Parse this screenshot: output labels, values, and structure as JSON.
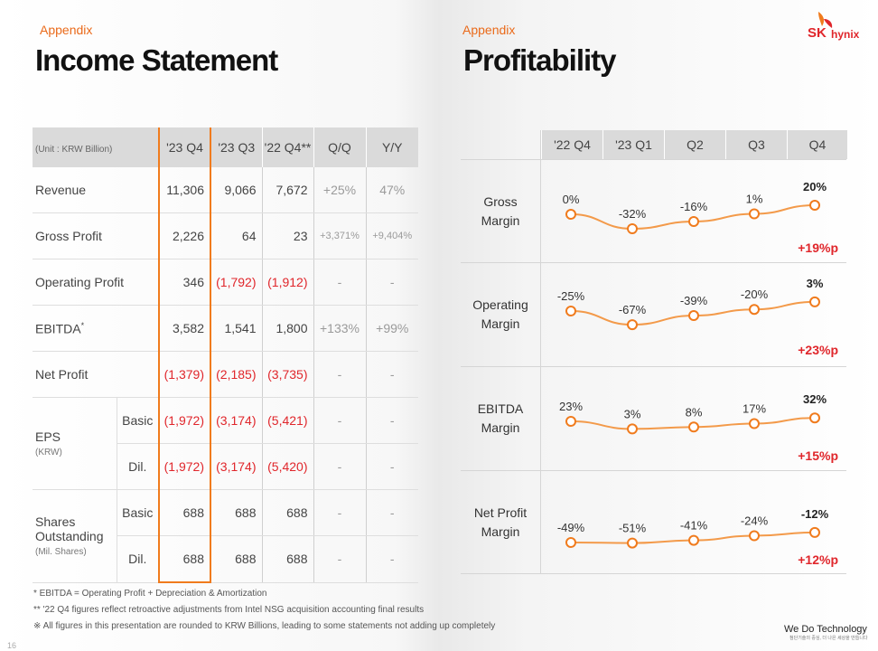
{
  "left": {
    "appendix": "Appendix",
    "title": "Income Statement",
    "unit": "(Unit : KRW Billion)",
    "headers": [
      "'23 Q4",
      "'23 Q3",
      "'22 Q4**",
      "Q/Q",
      "Y/Y"
    ],
    "rows": {
      "revenue": {
        "label": "Revenue",
        "v": [
          "11,306",
          "9,066",
          "7,672",
          "+25%",
          "47%"
        ]
      },
      "gross": {
        "label": "Gross Profit",
        "v": [
          "2,226",
          "64",
          "23",
          "+3,371%",
          "+9,404%"
        ]
      },
      "op": {
        "label": "Operating Profit",
        "v": [
          "346",
          "(1,792)",
          "(1,912)",
          "-",
          "-"
        ]
      },
      "ebitda": {
        "label": "EBITDA",
        "mark": "*",
        "v": [
          "3,582",
          "1,541",
          "1,800",
          "+133%",
          "+99%"
        ]
      },
      "net": {
        "label": "Net Profit",
        "v": [
          "(1,379)",
          "(2,185)",
          "(3,735)",
          "-",
          "-"
        ]
      },
      "eps": {
        "label": "EPS",
        "sub": "(KRW)",
        "basic": {
          "label": "Basic",
          "v": [
            "(1,972)",
            "(3,174)",
            "(5,421)",
            "-",
            "-"
          ]
        },
        "dil": {
          "label": "Dil.",
          "v": [
            "(1,972)",
            "(3,174)",
            "(5,420)",
            "-",
            "-"
          ]
        }
      },
      "shares": {
        "label1": "Shares",
        "label2": "Outstanding",
        "sub": "(Mil. Shares)",
        "basic": {
          "label": "Basic",
          "v": [
            "688",
            "688",
            "688",
            "-",
            "-"
          ]
        },
        "dil": {
          "label": "Dil.",
          "v": [
            "688",
            "688",
            "688",
            "-",
            "-"
          ]
        }
      }
    },
    "footnotes": [
      "* EBITDA = Operating Profit + Depreciation & Amortization",
      "** '22 Q4 figures reflect retroactive adjustments from Intel NSG acquisition accounting final results",
      "※ All figures in this presentation are rounded to KRW Billions, leading to some statements not adding up completely"
    ]
  },
  "right": {
    "appendix": "Appendix",
    "title": "Profitability",
    "headers": [
      "'22 Q4",
      "'23 Q1",
      "Q2",
      "Q3",
      "Q4"
    ],
    "rows": [
      {
        "label1": "Gross",
        "label2": "Margin",
        "values": [
          0,
          -32,
          -16,
          1,
          20
        ],
        "labels": [
          "0%",
          "-32%",
          "-16%",
          "1%",
          "20%"
        ],
        "delta": "+19%p"
      },
      {
        "label1": "Operating",
        "label2": "Margin",
        "values": [
          -25,
          -67,
          -39,
          -20,
          3
        ],
        "labels": [
          "-25%",
          "-67%",
          "-39%",
          "-20%",
          "3%"
        ],
        "delta": "+23%p"
      },
      {
        "label1": "EBITDA",
        "label2": "Margin",
        "values": [
          23,
          3,
          8,
          17,
          32
        ],
        "labels": [
          "23%",
          "3%",
          "8%",
          "17%",
          "32%"
        ],
        "delta": "+15%p"
      },
      {
        "label1": "Net Profit",
        "label2": "Margin",
        "values": [
          -49,
          -51,
          -41,
          -24,
          -12
        ],
        "labels": [
          "-49%",
          "-51%",
          "-41%",
          "-24%",
          "-12%"
        ],
        "delta": "+12%p"
      }
    ]
  },
  "brand": {
    "logo_sk": "SK",
    "logo_hynix": "hynix",
    "tagline": "We Do Technology",
    "tagline_sub": "첨단기술의 중심, 더 나은 세상을 만듭니다"
  },
  "page_number": "16",
  "colors": {
    "accent": "#f07b1d",
    "negative": "#e0262b",
    "header_gray": "#dadada"
  }
}
